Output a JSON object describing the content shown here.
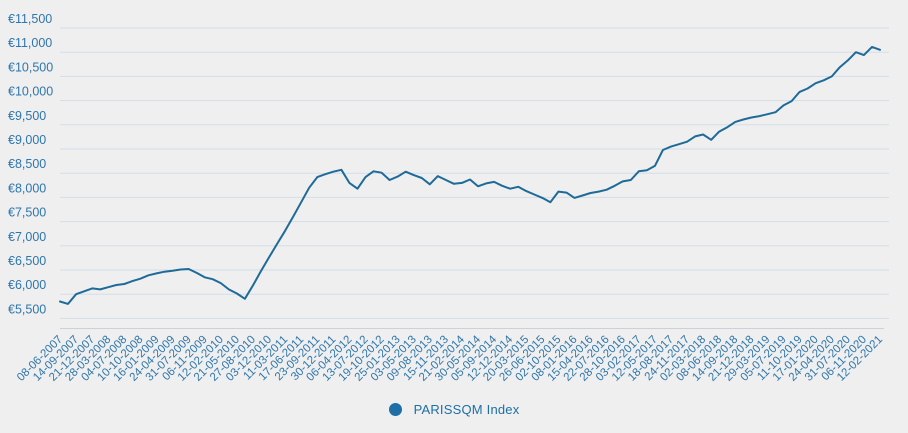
{
  "chart": {
    "legend": {
      "label": "PARISSQM Index"
    },
    "colors": {
      "background": "#efefef",
      "grid": "#d3dee8",
      "axis_line": "#c9d2d9",
      "tick_label": "#2e76ab",
      "line": "#1e6a98",
      "legend": "#1d6fa5"
    }
  },
  "chart_data": {
    "type": "line",
    "title": "",
    "xlabel": "",
    "ylabel": "",
    "grid": true,
    "legend_position": "bottom-center",
    "ylim": [
      5500,
      11500
    ],
    "y_tick_values": [
      11500,
      11000,
      10500,
      10000,
      9500,
      9000,
      8500,
      8000,
      7500,
      7000,
      6500,
      6000,
      5500
    ],
    "y_tick_labels": [
      "€11,500",
      "€11,000",
      "€10,500",
      "€10,000",
      "€9,500",
      "€9,000",
      "€8,500",
      "€8,000",
      "€7,500",
      "€7,000",
      "€6,500",
      "€6,000",
      "€5,500"
    ],
    "categories": [
      "08-06-2007",
      "14-09-2007",
      "21-12-2007",
      "28-03-2008",
      "04-07-2008",
      "10-10-2008",
      "16-01-2009",
      "24-04-2009",
      "31-07-2009",
      "06-11-2009",
      "12-02-2010",
      "21-05-2010",
      "27-08-2010",
      "03-12-2010",
      "11-03-2011",
      "17-06-2011",
      "23-09-2011",
      "30-12-2011",
      "06-04-2012",
      "13-07-2012",
      "19-10-2012",
      "25-01-2013",
      "03-05-2013",
      "09-08-2013",
      "15-11-2013",
      "21-02-2014",
      "30-05-2014",
      "05-09-2014",
      "12-12-2014",
      "20-03-2015",
      "26-06-2015",
      "02-10-2015",
      "08-01-2016",
      "15-04-2016",
      "22-07-2016",
      "28-10-2016",
      "03-02-2017",
      "12-05-2017",
      "18-08-2017",
      "24-11-2017",
      "02-03-2018",
      "08-06-2018",
      "14-09-2018",
      "21-12-2018",
      "29-03-2019",
      "05-07-2019",
      "11-10-2019",
      "17-01-2020",
      "24-04-2020",
      "31-07-2020",
      "06-11-2020",
      "12-02-2021"
    ],
    "series": [
      {
        "name": "PARISSQM Index",
        "values_per_category": [
          5850,
          6000,
          6120,
          6145,
          6210,
          6320,
          6430,
          6485,
          6520,
          6350,
          6230,
          6015,
          6180,
          6760,
          7310,
          7900,
          8420,
          8530,
          8300,
          8420,
          8510,
          8430,
          8460,
          8270,
          8360,
          8300,
          8230,
          8320,
          8180,
          8130,
          7990,
          8120,
          7990,
          8090,
          8160,
          8330,
          8540,
          8650,
          9050,
          9150,
          9300,
          9360,
          9560,
          9650,
          9720,
          9900,
          10180,
          10360,
          10500,
          10830,
          10940,
          11050
        ],
        "points_per_category_interval": 2,
        "values_dense": [
          5850,
          5800,
          6000,
          6060,
          6120,
          6100,
          6145,
          6190,
          6210,
          6270,
          6320,
          6390,
          6430,
          6465,
          6485,
          6510,
          6520,
          6440,
          6350,
          6310,
          6230,
          6100,
          6015,
          5905,
          6180,
          6480,
          6760,
          7040,
          7310,
          7600,
          7900,
          8200,
          8420,
          8480,
          8530,
          8570,
          8300,
          8180,
          8420,
          8540,
          8510,
          8360,
          8430,
          8530,
          8460,
          8400,
          8270,
          8440,
          8360,
          8280,
          8300,
          8370,
          8230,
          8290,
          8320,
          8240,
          8180,
          8220,
          8130,
          8060,
          7990,
          7900,
          8120,
          8100,
          7990,
          8040,
          8090,
          8120,
          8160,
          8240,
          8330,
          8360,
          8540,
          8560,
          8650,
          8980,
          9050,
          9100,
          9150,
          9260,
          9300,
          9190,
          9360,
          9450,
          9560,
          9610,
          9650,
          9680,
          9720,
          9760,
          9900,
          9990,
          10180,
          10250,
          10360,
          10420,
          10500,
          10690,
          10830,
          11000,
          10940,
          11110,
          11050
        ]
      }
    ]
  }
}
